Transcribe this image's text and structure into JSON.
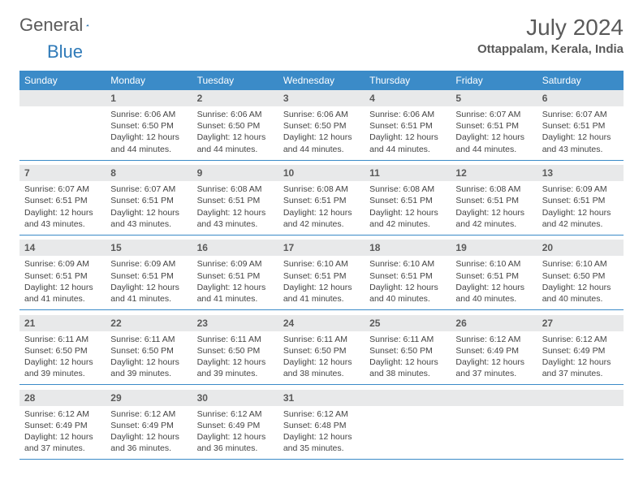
{
  "logo": {
    "part1": "General",
    "part2": "Blue"
  },
  "title": "July 2024",
  "location": "Ottappalam, Kerala, India",
  "weekdays": [
    "Sunday",
    "Monday",
    "Tuesday",
    "Wednesday",
    "Thursday",
    "Friday",
    "Saturday"
  ],
  "colors": {
    "header_bg": "#3b8bc8",
    "header_text": "#ffffff",
    "daynum_bg": "#e8e9ea",
    "text": "#5a5a5a",
    "rule": "#3b8bc8"
  },
  "weeks": [
    [
      {
        "n": "",
        "sr": "",
        "ss": "",
        "dl": ""
      },
      {
        "n": "1",
        "sr": "6:06 AM",
        "ss": "6:50 PM",
        "dl": "12 hours and 44 minutes."
      },
      {
        "n": "2",
        "sr": "6:06 AM",
        "ss": "6:50 PM",
        "dl": "12 hours and 44 minutes."
      },
      {
        "n": "3",
        "sr": "6:06 AM",
        "ss": "6:50 PM",
        "dl": "12 hours and 44 minutes."
      },
      {
        "n": "4",
        "sr": "6:06 AM",
        "ss": "6:51 PM",
        "dl": "12 hours and 44 minutes."
      },
      {
        "n": "5",
        "sr": "6:07 AM",
        "ss": "6:51 PM",
        "dl": "12 hours and 44 minutes."
      },
      {
        "n": "6",
        "sr": "6:07 AM",
        "ss": "6:51 PM",
        "dl": "12 hours and 43 minutes."
      }
    ],
    [
      {
        "n": "7",
        "sr": "6:07 AM",
        "ss": "6:51 PM",
        "dl": "12 hours and 43 minutes."
      },
      {
        "n": "8",
        "sr": "6:07 AM",
        "ss": "6:51 PM",
        "dl": "12 hours and 43 minutes."
      },
      {
        "n": "9",
        "sr": "6:08 AM",
        "ss": "6:51 PM",
        "dl": "12 hours and 43 minutes."
      },
      {
        "n": "10",
        "sr": "6:08 AM",
        "ss": "6:51 PM",
        "dl": "12 hours and 42 minutes."
      },
      {
        "n": "11",
        "sr": "6:08 AM",
        "ss": "6:51 PM",
        "dl": "12 hours and 42 minutes."
      },
      {
        "n": "12",
        "sr": "6:08 AM",
        "ss": "6:51 PM",
        "dl": "12 hours and 42 minutes."
      },
      {
        "n": "13",
        "sr": "6:09 AM",
        "ss": "6:51 PM",
        "dl": "12 hours and 42 minutes."
      }
    ],
    [
      {
        "n": "14",
        "sr": "6:09 AM",
        "ss": "6:51 PM",
        "dl": "12 hours and 41 minutes."
      },
      {
        "n": "15",
        "sr": "6:09 AM",
        "ss": "6:51 PM",
        "dl": "12 hours and 41 minutes."
      },
      {
        "n": "16",
        "sr": "6:09 AM",
        "ss": "6:51 PM",
        "dl": "12 hours and 41 minutes."
      },
      {
        "n": "17",
        "sr": "6:10 AM",
        "ss": "6:51 PM",
        "dl": "12 hours and 41 minutes."
      },
      {
        "n": "18",
        "sr": "6:10 AM",
        "ss": "6:51 PM",
        "dl": "12 hours and 40 minutes."
      },
      {
        "n": "19",
        "sr": "6:10 AM",
        "ss": "6:51 PM",
        "dl": "12 hours and 40 minutes."
      },
      {
        "n": "20",
        "sr": "6:10 AM",
        "ss": "6:50 PM",
        "dl": "12 hours and 40 minutes."
      }
    ],
    [
      {
        "n": "21",
        "sr": "6:11 AM",
        "ss": "6:50 PM",
        "dl": "12 hours and 39 minutes."
      },
      {
        "n": "22",
        "sr": "6:11 AM",
        "ss": "6:50 PM",
        "dl": "12 hours and 39 minutes."
      },
      {
        "n": "23",
        "sr": "6:11 AM",
        "ss": "6:50 PM",
        "dl": "12 hours and 39 minutes."
      },
      {
        "n": "24",
        "sr": "6:11 AM",
        "ss": "6:50 PM",
        "dl": "12 hours and 38 minutes."
      },
      {
        "n": "25",
        "sr": "6:11 AM",
        "ss": "6:50 PM",
        "dl": "12 hours and 38 minutes."
      },
      {
        "n": "26",
        "sr": "6:12 AM",
        "ss": "6:49 PM",
        "dl": "12 hours and 37 minutes."
      },
      {
        "n": "27",
        "sr": "6:12 AM",
        "ss": "6:49 PM",
        "dl": "12 hours and 37 minutes."
      }
    ],
    [
      {
        "n": "28",
        "sr": "6:12 AM",
        "ss": "6:49 PM",
        "dl": "12 hours and 37 minutes."
      },
      {
        "n": "29",
        "sr": "6:12 AM",
        "ss": "6:49 PM",
        "dl": "12 hours and 36 minutes."
      },
      {
        "n": "30",
        "sr": "6:12 AM",
        "ss": "6:49 PM",
        "dl": "12 hours and 36 minutes."
      },
      {
        "n": "31",
        "sr": "6:12 AM",
        "ss": "6:48 PM",
        "dl": "12 hours and 35 minutes."
      },
      {
        "n": "",
        "sr": "",
        "ss": "",
        "dl": ""
      },
      {
        "n": "",
        "sr": "",
        "ss": "",
        "dl": ""
      },
      {
        "n": "",
        "sr": "",
        "ss": "",
        "dl": ""
      }
    ]
  ],
  "labels": {
    "sunrise": "Sunrise:",
    "sunset": "Sunset:",
    "daylight": "Daylight:"
  }
}
